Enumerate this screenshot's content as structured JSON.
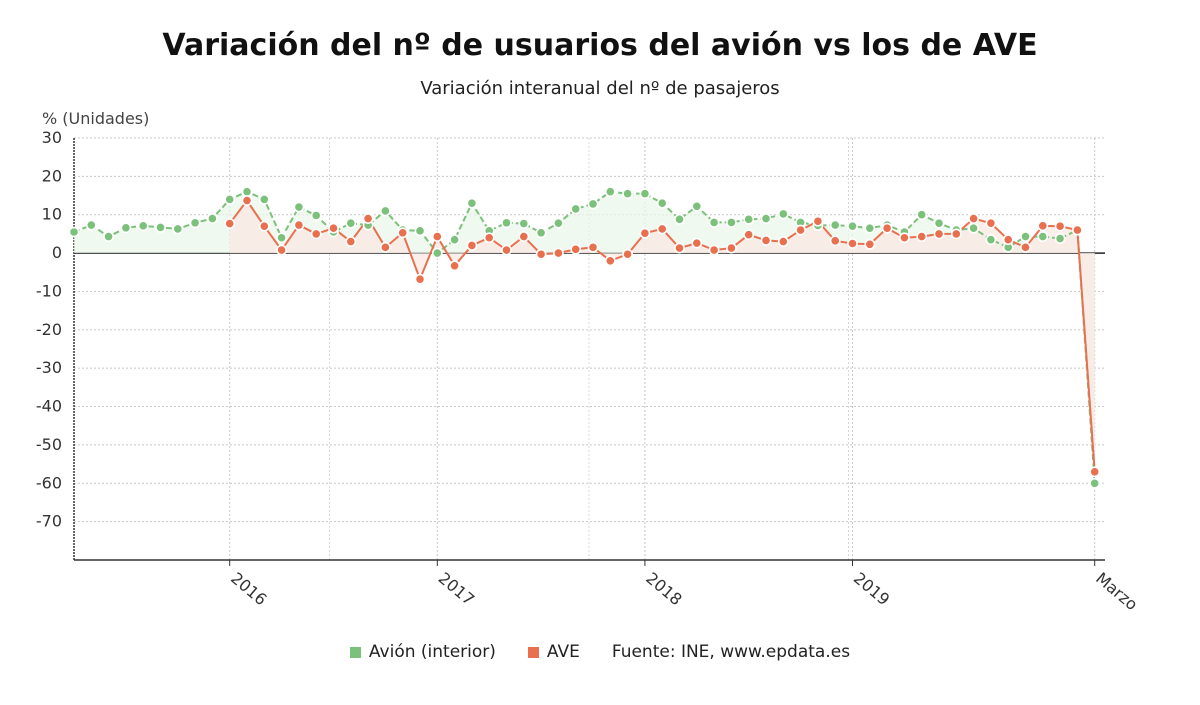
{
  "chart_data": {
    "type": "line",
    "title": "Variación del nº de usuarios del avión vs los de AVE",
    "subtitle": "Variación interanual del nº de pasajeros",
    "ylabel": "% (Unidades)",
    "ylim": [
      -80,
      30
    ],
    "y_ticks": [
      30,
      20,
      10,
      0,
      -10,
      -20,
      -30,
      -40,
      -50,
      -60,
      -70
    ],
    "x_tick_labels": [
      {
        "label": "2016",
        "month_index": 9
      },
      {
        "label": "2017",
        "month_index": 21
      },
      {
        "label": "2018",
        "month_index": 33
      },
      {
        "label": "2019",
        "month_index": 45
      },
      {
        "label": "Marzo",
        "month_index": 59
      }
    ],
    "grid": true,
    "legend_position": "bottom",
    "source": "Fuente: INE, www.epdata.es",
    "series": [
      {
        "name": "Avión (interior)",
        "color": "#7cc17b",
        "start_index": 0,
        "values": [
          5.5,
          7.3,
          4.3,
          6.6,
          7.1,
          6.7,
          6.3,
          7.9,
          9.0,
          14.0,
          16.0,
          14.0,
          4.0,
          12.0,
          9.8,
          5.5,
          7.8,
          7.3,
          11.0,
          6.0,
          5.8,
          0.0,
          3.5,
          13.0,
          5.8,
          7.9,
          7.7,
          5.3,
          7.8,
          11.5,
          12.8,
          16.0,
          15.5,
          15.5,
          13.0,
          8.8,
          12.2,
          8.0,
          8.0,
          8.8,
          9.0,
          10.2,
          8.0,
          7.2,
          7.3,
          7.0,
          6.5,
          7.3,
          5.5,
          10.0,
          7.8,
          6.0,
          6.5,
          3.5,
          1.5,
          4.3,
          4.3,
          3.8,
          6.0,
          -60.0
        ]
      },
      {
        "name": "AVE",
        "color": "#e8704f",
        "start_index": 9,
        "values": [
          7.7,
          13.7,
          7.0,
          0.8,
          7.3,
          5.0,
          6.5,
          3.0,
          9.0,
          1.5,
          5.3,
          -6.8,
          4.3,
          -3.3,
          2.0,
          4.0,
          0.8,
          4.3,
          -0.3,
          0.0,
          1.0,
          1.5,
          -2.0,
          -0.3,
          5.2,
          6.3,
          1.3,
          2.6,
          0.8,
          1.3,
          4.8,
          3.3,
          3.0,
          6.0,
          8.3,
          3.2,
          2.5,
          2.3,
          6.5,
          4.0,
          4.3,
          5.0,
          5.0,
          9.0,
          7.8,
          3.5,
          1.5,
          7.1,
          7.0,
          6.0,
          -57.0
        ]
      }
    ]
  }
}
